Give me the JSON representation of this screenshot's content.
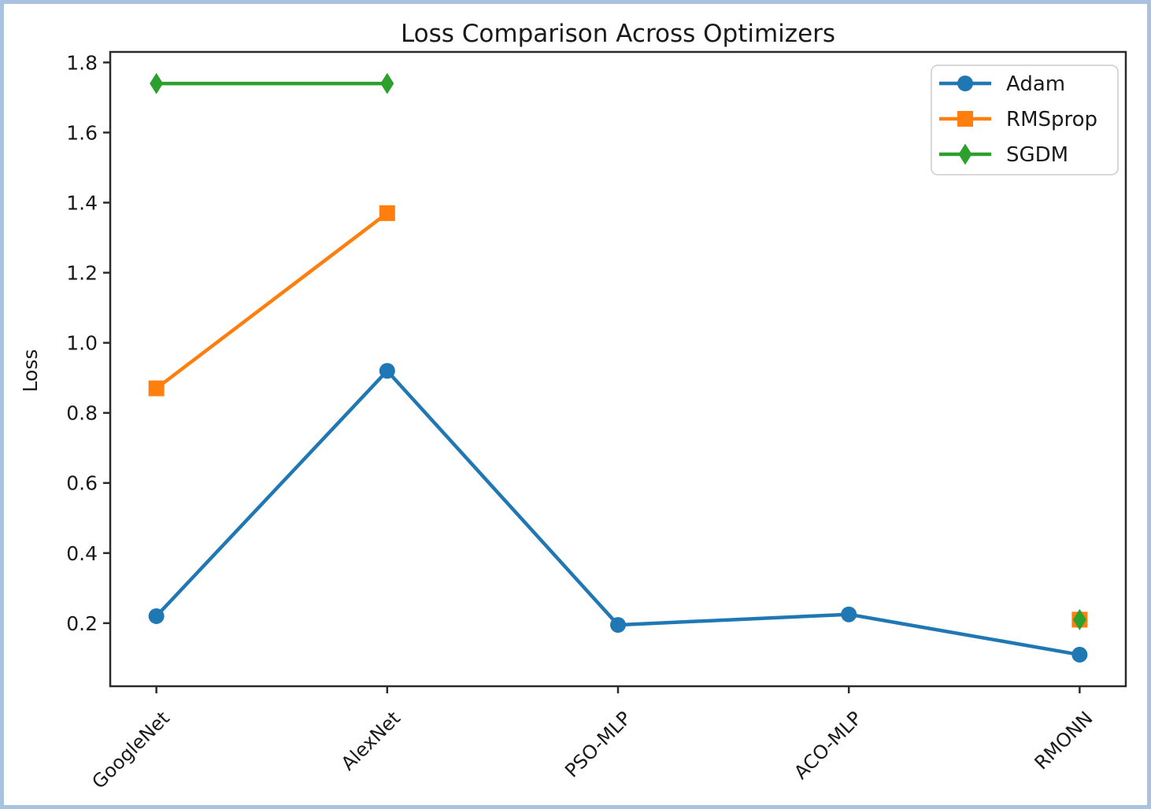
{
  "frame": {
    "border_color": "#a9c2e0",
    "background_color": "#ffffff"
  },
  "chart_data": {
    "type": "line",
    "title": "Loss Comparison Across Optimizers",
    "xlabel": "",
    "ylabel": "Loss",
    "categories": [
      "GoogleNet",
      "AlexNet",
      "PSO-MLP",
      "ACO-MLP",
      "RMONN"
    ],
    "series": [
      {
        "name": "Adam",
        "color": "#1f77b4",
        "marker": "circle",
        "values": [
          0.22,
          0.92,
          0.195,
          0.225,
          0.11
        ]
      },
      {
        "name": "RMSprop",
        "color": "#ff7f0e",
        "marker": "square",
        "values": [
          0.87,
          1.37,
          null,
          null,
          0.21
        ]
      },
      {
        "name": "SGDM",
        "color": "#2ca02c",
        "marker": "diamond",
        "values": [
          1.74,
          1.74,
          null,
          null,
          0.21
        ]
      }
    ],
    "yticks": [
      0.2,
      0.4,
      0.6,
      0.8,
      1.0,
      1.2,
      1.4,
      1.6,
      1.8
    ],
    "ylim": [
      0.02,
      1.83
    ],
    "grid": false,
    "legend_position": "upper right",
    "legend_entries": [
      "Adam",
      "RMSprop",
      "SGDM"
    ]
  }
}
